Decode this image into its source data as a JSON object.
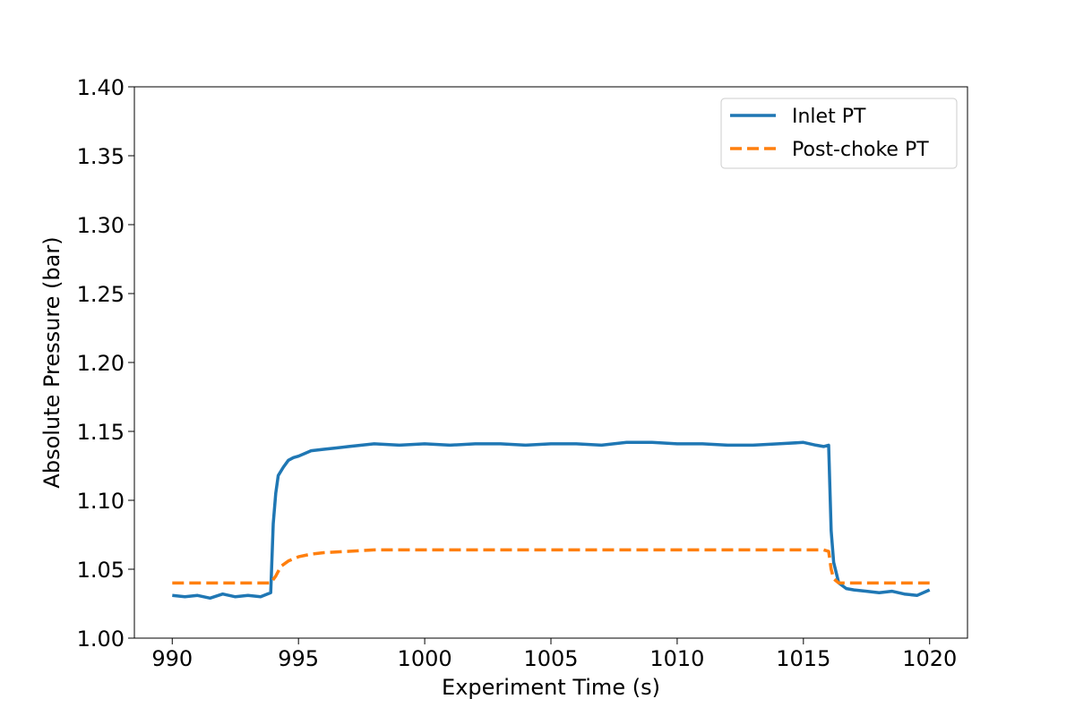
{
  "chart_data": {
    "type": "line",
    "title": "",
    "xlabel": "Experiment Time (s)",
    "ylabel": "Absolute Pressure (bar)",
    "xlim": [
      988.5,
      1021.5
    ],
    "ylim": [
      1.0,
      1.4
    ],
    "xticks": [
      990,
      995,
      1000,
      1005,
      1010,
      1015,
      1020
    ],
    "xtick_labels": [
      "990",
      "995",
      "1000",
      "1005",
      "1010",
      "1015",
      "1020"
    ],
    "yticks": [
      1.0,
      1.05,
      1.1,
      1.15,
      1.2,
      1.25,
      1.3,
      1.35,
      1.4
    ],
    "ytick_labels": [
      "1.00",
      "1.05",
      "1.10",
      "1.15",
      "1.20",
      "1.25",
      "1.30",
      "1.35",
      "1.40"
    ],
    "grid": false,
    "legend": {
      "placement": "top-right",
      "entries": [
        "Inlet PT",
        "Post-choke PT"
      ]
    },
    "series": [
      {
        "name": "Inlet PT",
        "color": "#1f77b4",
        "style": "solid",
        "x": [
          990,
          990.5,
          991,
          991.5,
          992,
          992.5,
          993,
          993.5,
          993.9,
          994.0,
          994.1,
          994.2,
          994.4,
          994.6,
          994.8,
          995.0,
          995.5,
          996,
          996.5,
          997,
          998,
          999,
          1000,
          1001,
          1002,
          1003,
          1004,
          1005,
          1006,
          1007,
          1008,
          1009,
          1010,
          1011,
          1012,
          1013,
          1014,
          1015,
          1015.5,
          1015.8,
          1016.0,
          1016.1,
          1016.2,
          1016.4,
          1016.7,
          1017,
          1017.5,
          1018,
          1018.5,
          1019,
          1019.5,
          1020
        ],
        "y": [
          1.031,
          1.03,
          1.031,
          1.029,
          1.032,
          1.03,
          1.031,
          1.03,
          1.033,
          1.083,
          1.105,
          1.118,
          1.124,
          1.129,
          1.131,
          1.132,
          1.136,
          1.137,
          1.138,
          1.139,
          1.141,
          1.14,
          1.141,
          1.14,
          1.141,
          1.141,
          1.14,
          1.141,
          1.141,
          1.14,
          1.142,
          1.142,
          1.141,
          1.141,
          1.14,
          1.14,
          1.141,
          1.142,
          1.14,
          1.139,
          1.14,
          1.078,
          1.055,
          1.04,
          1.036,
          1.035,
          1.034,
          1.033,
          1.034,
          1.032,
          1.031,
          1.035
        ]
      },
      {
        "name": "Post-choke PT",
        "color": "#ff7f0e",
        "style": "dashed",
        "x": [
          990,
          991,
          992,
          993,
          993.9,
          994.1,
          994.3,
          994.6,
          995.0,
          995.5,
          996,
          997,
          998,
          1000,
          1005,
          1010,
          1015,
          1015.8,
          1016.0,
          1016.1,
          1016.2,
          1016.4,
          1017,
          1018,
          1019,
          1020
        ],
        "y": [
          1.04,
          1.04,
          1.04,
          1.04,
          1.04,
          1.045,
          1.052,
          1.056,
          1.059,
          1.061,
          1.062,
          1.063,
          1.064,
          1.064,
          1.064,
          1.064,
          1.064,
          1.064,
          1.063,
          1.05,
          1.043,
          1.04,
          1.04,
          1.04,
          1.04,
          1.04
        ]
      }
    ]
  }
}
